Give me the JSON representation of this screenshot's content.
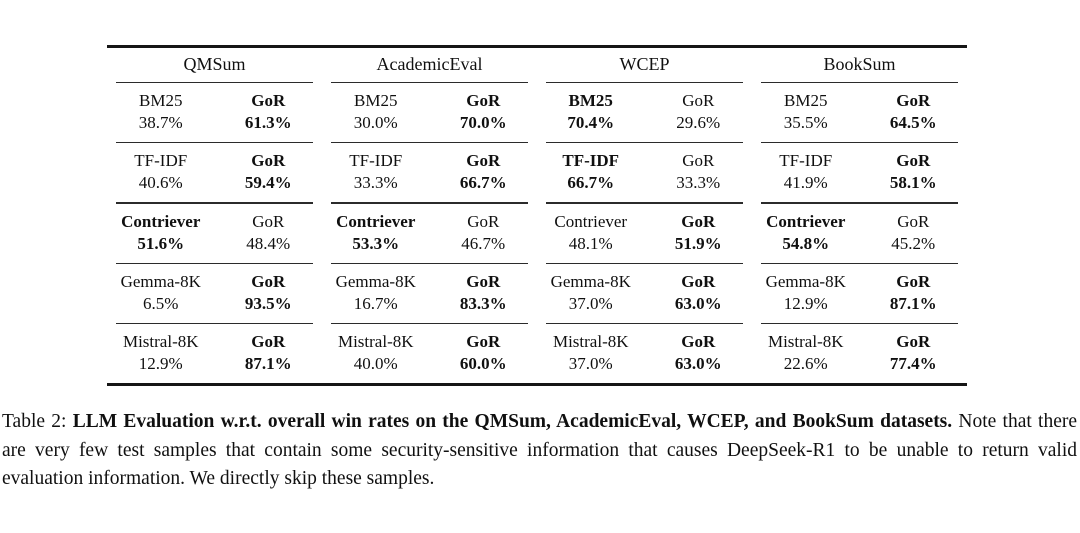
{
  "page": {
    "background": "#ffffff",
    "text_color": "#101010"
  },
  "table": {
    "groups": [
      {
        "label": "QMSum"
      },
      {
        "label": "AcademicEval"
      },
      {
        "label": "WCEP"
      },
      {
        "label": "BookSum"
      }
    ],
    "rows": [
      {
        "method": "BM25",
        "pairs": [
          {
            "baseline": {
              "label": "BM25",
              "value": "38.7%",
              "bold": false
            },
            "gor": {
              "label": "GoR",
              "value": "61.3%",
              "bold": true
            }
          },
          {
            "baseline": {
              "label": "BM25",
              "value": "30.0%",
              "bold": false
            },
            "gor": {
              "label": "GoR",
              "value": "70.0%",
              "bold": true
            }
          },
          {
            "baseline": {
              "label": "BM25",
              "value": "70.4%",
              "bold": true
            },
            "gor": {
              "label": "GoR",
              "value": "29.6%",
              "bold": false
            }
          },
          {
            "baseline": {
              "label": "BM25",
              "value": "35.5%",
              "bold": false
            },
            "gor": {
              "label": "GoR",
              "value": "64.5%",
              "bold": true
            }
          }
        ]
      },
      {
        "method": "TF-IDF",
        "pairs": [
          {
            "baseline": {
              "label": "TF-IDF",
              "value": "40.6%",
              "bold": false
            },
            "gor": {
              "label": "GoR",
              "value": "59.4%",
              "bold": true
            }
          },
          {
            "baseline": {
              "label": "TF-IDF",
              "value": "33.3%",
              "bold": false
            },
            "gor": {
              "label": "GoR",
              "value": "66.7%",
              "bold": true
            }
          },
          {
            "baseline": {
              "label": "TF-IDF",
              "value": "66.7%",
              "bold": true
            },
            "gor": {
              "label": "GoR",
              "value": "33.3%",
              "bold": false
            }
          },
          {
            "baseline": {
              "label": "TF-IDF",
              "value": "41.9%",
              "bold": false
            },
            "gor": {
              "label": "GoR",
              "value": "58.1%",
              "bold": true
            }
          }
        ]
      },
      {
        "method": "Contriever",
        "pairs": [
          {
            "baseline": {
              "label": "Contriever",
              "value": "51.6%",
              "bold": true
            },
            "gor": {
              "label": "GoR",
              "value": "48.4%",
              "bold": false
            }
          },
          {
            "baseline": {
              "label": "Contriever",
              "value": "53.3%",
              "bold": true
            },
            "gor": {
              "label": "GoR",
              "value": "46.7%",
              "bold": false
            }
          },
          {
            "baseline": {
              "label": "Contriever",
              "value": "48.1%",
              "bold": false
            },
            "gor": {
              "label": "GoR",
              "value": "51.9%",
              "bold": true
            }
          },
          {
            "baseline": {
              "label": "Contriever",
              "value": "54.8%",
              "bold": true
            },
            "gor": {
              "label": "GoR",
              "value": "45.2%",
              "bold": false
            }
          }
        ]
      },
      {
        "method": "Gemma-8K",
        "pairs": [
          {
            "baseline": {
              "label": "Gemma-8K",
              "value": "6.5%",
              "bold": false
            },
            "gor": {
              "label": "GoR",
              "value": "93.5%",
              "bold": true
            }
          },
          {
            "baseline": {
              "label": "Gemma-8K",
              "value": "16.7%",
              "bold": false
            },
            "gor": {
              "label": "GoR",
              "value": "83.3%",
              "bold": true
            }
          },
          {
            "baseline": {
              "label": "Gemma-8K",
              "value": "37.0%",
              "bold": false
            },
            "gor": {
              "label": "GoR",
              "value": "63.0%",
              "bold": true
            }
          },
          {
            "baseline": {
              "label": "Gemma-8K",
              "value": "12.9%",
              "bold": false
            },
            "gor": {
              "label": "GoR",
              "value": "87.1%",
              "bold": true
            }
          }
        ]
      },
      {
        "method": "Mistral-8K",
        "pairs": [
          {
            "baseline": {
              "label": "Mistral-8K",
              "value": "12.9%",
              "bold": false
            },
            "gor": {
              "label": "GoR",
              "value": "87.1%",
              "bold": true
            }
          },
          {
            "baseline": {
              "label": "Mistral-8K",
              "value": "40.0%",
              "bold": false
            },
            "gor": {
              "label": "GoR",
              "value": "60.0%",
              "bold": true
            }
          },
          {
            "baseline": {
              "label": "Mistral-8K",
              "value": "37.0%",
              "bold": false
            },
            "gor": {
              "label": "GoR",
              "value": "63.0%",
              "bold": true
            }
          },
          {
            "baseline": {
              "label": "Mistral-8K",
              "value": "22.6%",
              "bold": false
            },
            "gor": {
              "label": "GoR",
              "value": "77.4%",
              "bold": true
            }
          }
        ]
      }
    ]
  },
  "caption": {
    "label": "Table 2: ",
    "bold_text": "LLM Evaluation w.r.t. overall win rates on the QMSum, AcademicEval, WCEP, and BookSum datasets.",
    "rest_text": " Note that there are very few test samples that contain some security-sensitive information that causes DeepSeek-R1 to be unable to return valid evaluation information. We directly skip these samples."
  }
}
